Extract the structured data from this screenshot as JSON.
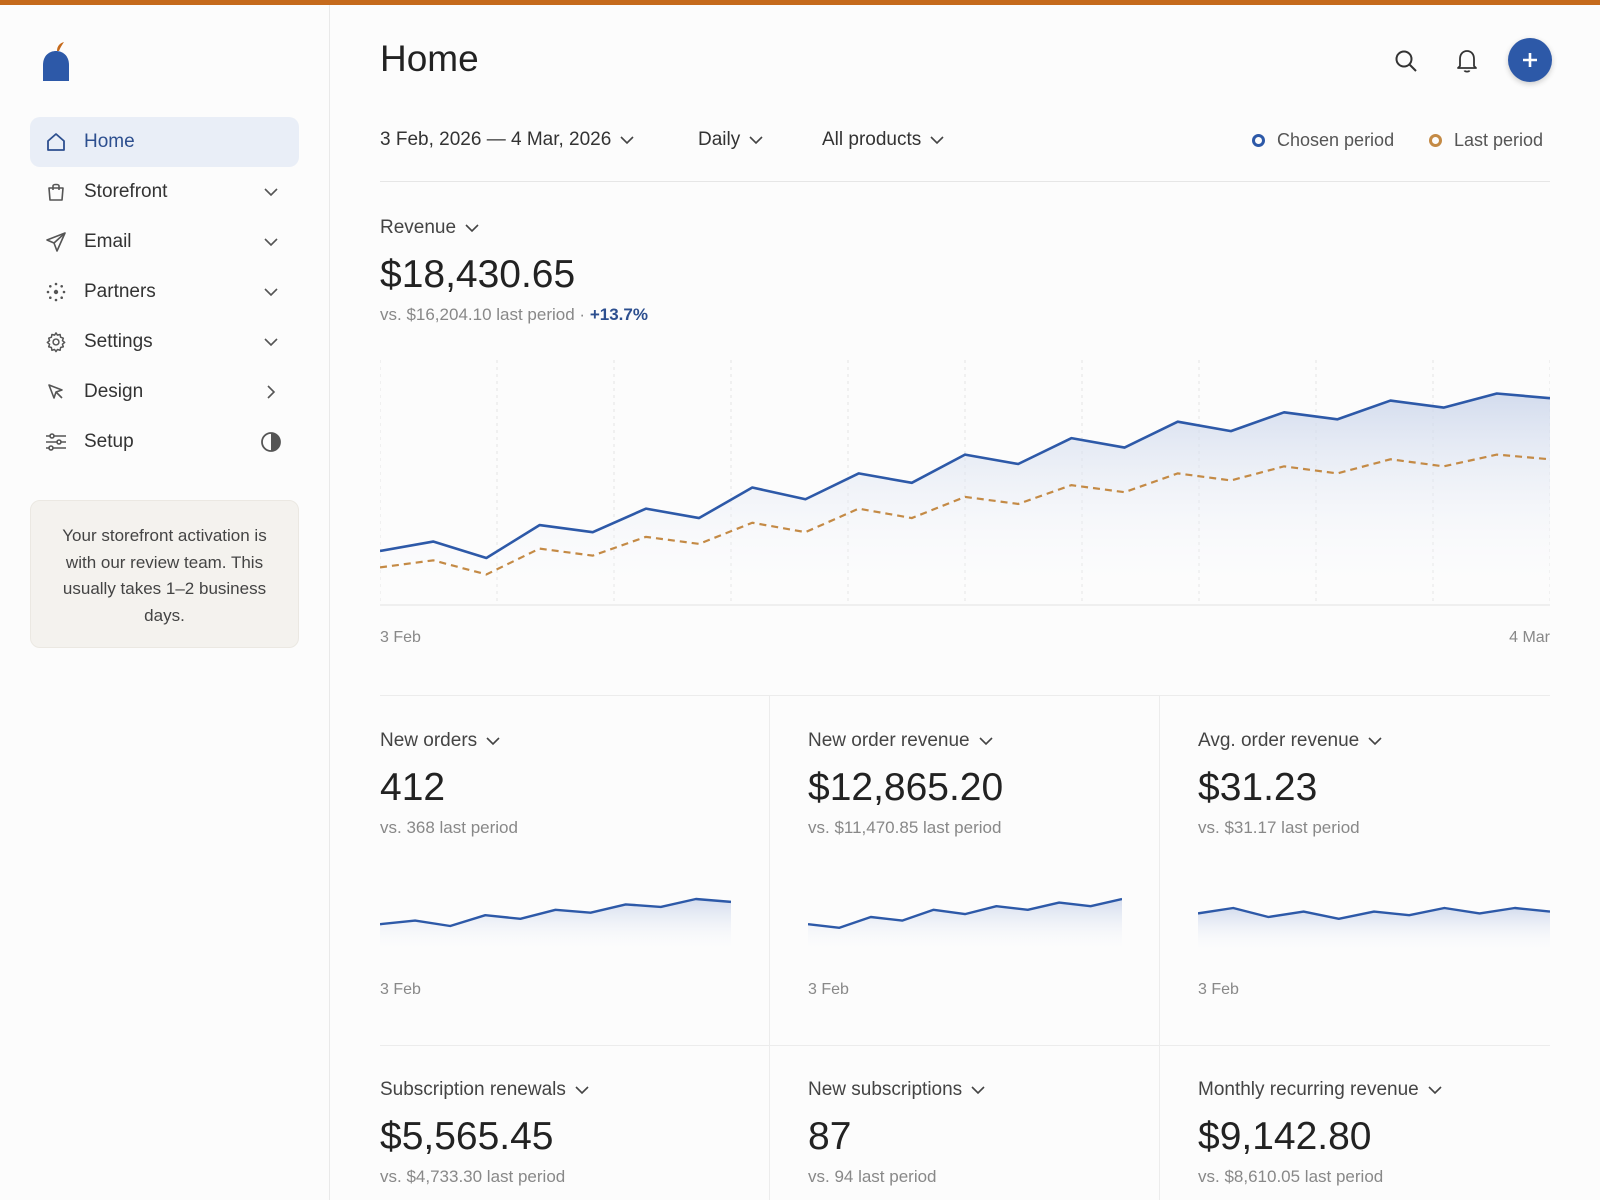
{
  "sidebar": {
    "items": [
      {
        "label": "Home"
      },
      {
        "label": "Storefront"
      },
      {
        "label": "Email"
      },
      {
        "label": "Partners"
      },
      {
        "label": "Settings"
      },
      {
        "label": "Design"
      },
      {
        "label": "Setup"
      }
    ],
    "notice": "Your storefront activation is with our review team. This usually takes 1–2 business days."
  },
  "header": {
    "title": "Home"
  },
  "filters": {
    "date_range": "3 Feb, 2026 — 4 Mar, 2026",
    "interval": "Daily",
    "products": "All products",
    "legend_chosen": "Chosen period",
    "legend_last": "Last period"
  },
  "colors": {
    "accent": "#2d59a8",
    "chosen": "#2d59a8",
    "last": "#c48a45",
    "brand": "#c56a1c"
  },
  "revenue": {
    "label": "Revenue",
    "value": "$18,430.65",
    "comparison": "vs. $16,204.10 last period ·",
    "change": "+13.7%",
    "x_start": "3 Feb",
    "x_end": "4 Mar"
  },
  "cards": [
    {
      "label": "New orders",
      "value": "412",
      "comparison": "vs. 368 last period",
      "x_start": "3 Feb"
    },
    {
      "label": "New order revenue",
      "value": "$12,865.20",
      "comparison": "vs. $11,470.85 last period",
      "x_start": "3 Feb"
    },
    {
      "label": "Avg. order revenue",
      "value": "$31.23",
      "comparison": "vs. $31.17 last period",
      "x_start": "3 Feb"
    },
    {
      "label": "Subscription renewals",
      "value": "$5,565.45",
      "comparison": "vs. $4,733.30 last period"
    },
    {
      "label": "New subscriptions",
      "value": "87",
      "comparison": "vs. 94 last period"
    },
    {
      "label": "Monthly recurring revenue",
      "value": "$9,142.80",
      "comparison": "vs. $8,610.05 last period"
    }
  ],
  "chart_data": [
    {
      "type": "line",
      "title": "Revenue",
      "x_range": [
        "3 Feb",
        "4 Mar"
      ],
      "series": [
        {
          "name": "Chosen period",
          "values": [
            0.23,
            0.27,
            0.2,
            0.34,
            0.31,
            0.41,
            0.37,
            0.5,
            0.45,
            0.56,
            0.52,
            0.64,
            0.6,
            0.71,
            0.67,
            0.78,
            0.74,
            0.82,
            0.79,
            0.87,
            0.84,
            0.9,
            0.88
          ]
        },
        {
          "name": "Last period",
          "values": [
            0.16,
            0.19,
            0.13,
            0.24,
            0.21,
            0.29,
            0.26,
            0.35,
            0.31,
            0.41,
            0.37,
            0.46,
            0.43,
            0.51,
            0.48,
            0.56,
            0.53,
            0.59,
            0.56,
            0.62,
            0.59,
            0.64,
            0.62
          ]
        }
      ]
    },
    {
      "type": "line",
      "title": "New orders",
      "series": [
        {
          "values": [
            0.3,
            0.4,
            0.25,
            0.55,
            0.45,
            0.7,
            0.62,
            0.85,
            0.78,
            1.0,
            0.92
          ]
        }
      ]
    },
    {
      "type": "line",
      "title": "New order revenue",
      "series": [
        {
          "values": [
            0.3,
            0.2,
            0.5,
            0.4,
            0.7,
            0.58,
            0.8,
            0.7,
            0.9,
            0.8,
            1.0
          ]
        }
      ]
    },
    {
      "type": "line",
      "title": "Avg. order revenue",
      "series": [
        {
          "values": [
            0.6,
            0.75,
            0.5,
            0.65,
            0.45,
            0.65,
            0.55,
            0.75,
            0.6,
            0.75,
            0.65
          ]
        }
      ]
    }
  ]
}
